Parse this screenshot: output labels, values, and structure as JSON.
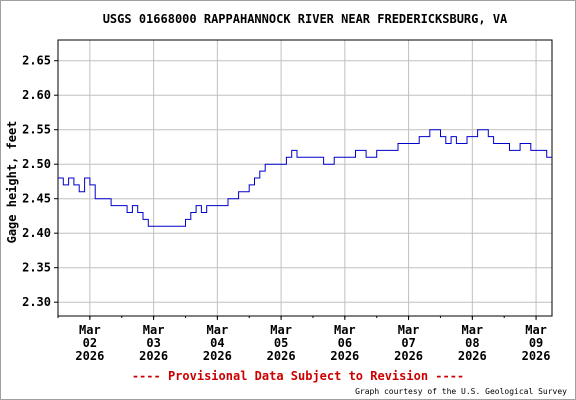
{
  "chart_data": {
    "type": "line",
    "title": "USGS 01668000 RAPPAHANNOCK RIVER NEAR FREDERICKSBURG, VA",
    "ylabel": "Gage height, feet",
    "xlabel": "",
    "ylim": [
      2.28,
      2.68
    ],
    "xlim": [
      "2026-03-01T12:00",
      "2026-03-09T06:00"
    ],
    "yticks": [
      "2.30",
      "2.35",
      "2.40",
      "2.45",
      "2.50",
      "2.55",
      "2.60",
      "2.65"
    ],
    "xticks": [
      {
        "month": "Mar",
        "day": "02",
        "year": "2026"
      },
      {
        "month": "Mar",
        "day": "03",
        "year": "2026"
      },
      {
        "month": "Mar",
        "day": "04",
        "year": "2026"
      },
      {
        "month": "Mar",
        "day": "05",
        "year": "2026"
      },
      {
        "month": "Mar",
        "day": "06",
        "year": "2026"
      },
      {
        "month": "Mar",
        "day": "07",
        "year": "2026"
      },
      {
        "month": "Mar",
        "day": "08",
        "year": "2026"
      },
      {
        "month": "Mar",
        "day": "09",
        "year": "2026"
      }
    ],
    "grid": true,
    "series": [
      {
        "color": "#0000cc",
        "x": [
          "2026-03-01T12:00",
          "2026-03-01T14:00",
          "2026-03-01T16:00",
          "2026-03-01T18:00",
          "2026-03-01T20:00",
          "2026-03-01T22:00",
          "2026-03-02T00:00",
          "2026-03-02T02:00",
          "2026-03-02T04:00",
          "2026-03-02T06:00",
          "2026-03-02T08:00",
          "2026-03-02T10:00",
          "2026-03-02T12:00",
          "2026-03-02T14:00",
          "2026-03-02T16:00",
          "2026-03-02T18:00",
          "2026-03-02T20:00",
          "2026-03-02T22:00",
          "2026-03-03T00:00",
          "2026-03-03T02:00",
          "2026-03-03T06:00",
          "2026-03-03T10:00",
          "2026-03-03T12:00",
          "2026-03-03T14:00",
          "2026-03-03T16:00",
          "2026-03-03T18:00",
          "2026-03-03T20:00",
          "2026-03-04T00:00",
          "2026-03-04T04:00",
          "2026-03-04T06:00",
          "2026-03-04T08:00",
          "2026-03-04T10:00",
          "2026-03-04T12:00",
          "2026-03-04T14:00",
          "2026-03-04T16:00",
          "2026-03-04T18:00",
          "2026-03-04T20:00",
          "2026-03-04T22:00",
          "2026-03-05T00:00",
          "2026-03-05T02:00",
          "2026-03-05T04:00",
          "2026-03-05T06:00",
          "2026-03-05T08:00",
          "2026-03-05T12:00",
          "2026-03-05T16:00",
          "2026-03-05T20:00",
          "2026-03-06T00:00",
          "2026-03-06T04:00",
          "2026-03-06T08:00",
          "2026-03-06T12:00",
          "2026-03-06T16:00",
          "2026-03-06T20:00",
          "2026-03-07T00:00",
          "2026-03-07T04:00",
          "2026-03-07T08:00",
          "2026-03-07T10:00",
          "2026-03-07T12:00",
          "2026-03-07T14:00",
          "2026-03-07T16:00",
          "2026-03-07T18:00",
          "2026-03-07T22:00",
          "2026-03-08T02:00",
          "2026-03-08T04:00",
          "2026-03-08T06:00",
          "2026-03-08T08:00",
          "2026-03-08T10:00",
          "2026-03-08T12:00",
          "2026-03-08T14:00",
          "2026-03-08T18:00",
          "2026-03-08T22:00",
          "2026-03-09T00:00",
          "2026-03-09T02:00",
          "2026-03-09T04:00",
          "2026-03-09T06:00"
        ],
        "y": [
          2.48,
          2.47,
          2.48,
          2.47,
          2.46,
          2.48,
          2.47,
          2.45,
          2.45,
          2.45,
          2.44,
          2.44,
          2.44,
          2.43,
          2.44,
          2.43,
          2.42,
          2.41,
          2.41,
          2.41,
          2.41,
          2.41,
          2.42,
          2.43,
          2.44,
          2.43,
          2.44,
          2.44,
          2.45,
          2.45,
          2.46,
          2.46,
          2.47,
          2.48,
          2.49,
          2.5,
          2.5,
          2.5,
          2.5,
          2.51,
          2.52,
          2.51,
          2.51,
          2.51,
          2.5,
          2.51,
          2.51,
          2.52,
          2.51,
          2.52,
          2.52,
          2.53,
          2.53,
          2.54,
          2.55,
          2.55,
          2.54,
          2.53,
          2.54,
          2.53,
          2.54,
          2.55,
          2.55,
          2.54,
          2.53,
          2.53,
          2.53,
          2.52,
          2.53,
          2.52,
          2.52,
          2.52,
          2.51,
          2.51
        ]
      }
    ]
  },
  "footer": {
    "provisional": "---- Provisional Data Subject to Revision ----",
    "credit": "Graph courtesy of the U.S. Geological Survey"
  },
  "colors": {
    "series": "#0000cc",
    "grid": "#c0c0c0",
    "provisional": "#cc0000"
  }
}
